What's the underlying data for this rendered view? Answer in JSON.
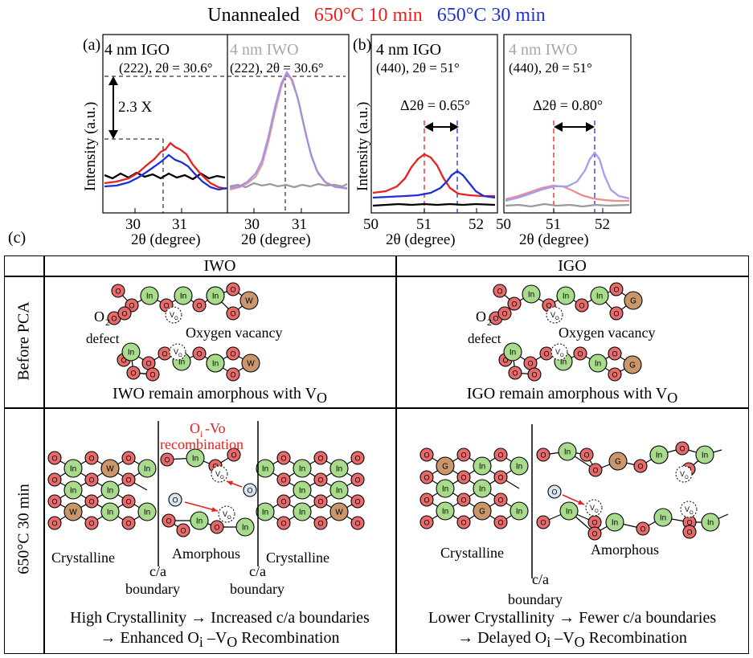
{
  "legend": {
    "unannealed": {
      "label": "Unannealed",
      "color": "#000000"
    },
    "t10": {
      "label": "650°C 10 min",
      "color": "#e8211d"
    },
    "t30": {
      "label": "650°C 30 min",
      "color": "#1f2fd6"
    }
  },
  "panel_a": {
    "tag": "(a)",
    "left_title": "4 nm IGO",
    "left_peak": "(222), 2θ = 30.6°",
    "right_title": "4 nm IWO",
    "right_peak": "(222), 2θ = 30.6°",
    "ratio": "2.3 X",
    "ylabel": "Intensity (a.u.)",
    "xlabel": "2θ (degree)",
    "xticks": [
      "30",
      "31",
      "30",
      "31"
    ]
  },
  "panel_b": {
    "tag": "(b)",
    "left_title": "4 nm IGO",
    "left_peak": "(440), 2θ = 51°",
    "left_shift": "Δ2θ = 0.65°",
    "right_title": "4 nm IWO",
    "right_peak": "(440), 2θ = 51°",
    "right_shift": "Δ2θ = 0.80°",
    "ylabel": "Intensity (a.u.)",
    "xlabel": "2θ (degree)",
    "xticks": [
      "50",
      "51",
      "52",
      "50",
      "51",
      "52"
    ]
  },
  "panel_c": {
    "tag": "(c)",
    "col_iwo": "IWO",
    "col_igo": "IGO",
    "row_before": "Before PCA",
    "row_after": "650°C 30 min",
    "o2": "O",
    "o2_sub": "2",
    "defect": "defect",
    "oxygen_vacancy": "Oxygen vacancy",
    "iwo_remain": "IWO remain amorphous with V",
    "igo_remain": "IGO remain amorphous with V",
    "sub_o": "O",
    "recomb_title_a": "O",
    "recomb_title_sub": "i",
    "recomb_title_b": "-Vo",
    "recomb_title_c": "recombination",
    "crystalline": "Crystalline",
    "amorphous": "Amorphous",
    "ca": "c/a",
    "boundary": "boundary",
    "iwo_line1": "High Crystallinity → Increased c/a boundaries",
    "iwo_line2a": "→ Enhanced O",
    "iwo_line2b": " –V",
    "iwo_line2c": " Recombination",
    "igo_line1": "Lower Crystallinity → Fewer c/a boundaries",
    "igo_line2a": "→ Delayed O",
    "igo_line2b": " –V",
    "igo_line2c": " Recombination",
    "sub_i": "i",
    "atoms": {
      "O": "O",
      "In": "In",
      "W": "W",
      "G": "G",
      "Vo": "V",
      "Vo_sub": "O"
    }
  },
  "colors": {
    "oxygen": "#e86a6a",
    "indium": "#a8dc8c",
    "dopant": "#c9976b",
    "interstitial": "#d9e6f2",
    "red": "#e8211d",
    "blue": "#1f2fd6"
  }
}
